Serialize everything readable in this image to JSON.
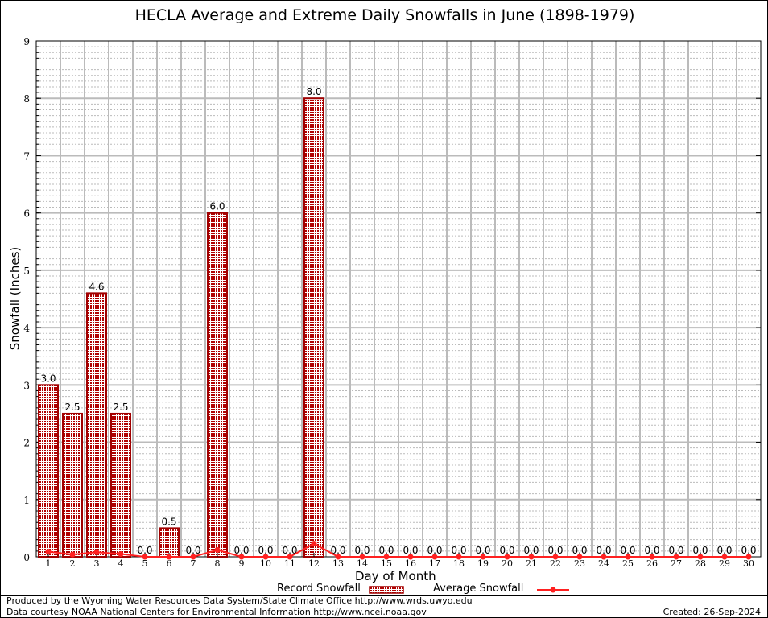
{
  "chart_data": {
    "type": "bar",
    "title": "HECLA Average and Extreme Daily Snowfalls in June (1898-1979)",
    "xlabel": "Day of Month",
    "ylabel": "Snowfall (Inches)",
    "ylim": [
      0,
      9
    ],
    "yticks": [
      "0",
      "1",
      "2",
      "3",
      "4",
      "5",
      "6",
      "7",
      "8",
      "9"
    ],
    "categories": [
      "1",
      "2",
      "3",
      "4",
      "5",
      "6",
      "7",
      "8",
      "9",
      "10",
      "11",
      "12",
      "13",
      "14",
      "15",
      "16",
      "17",
      "18",
      "19",
      "20",
      "21",
      "22",
      "23",
      "24",
      "25",
      "26",
      "27",
      "28",
      "29",
      "30"
    ],
    "series": [
      {
        "name": "Record Snowfall",
        "type": "bar",
        "color": "#cc0000",
        "values": [
          3.0,
          2.5,
          4.6,
          2.5,
          0,
          0.5,
          0,
          6.0,
          0,
          0,
          0,
          8.0,
          0,
          0,
          0,
          0,
          0,
          0,
          0,
          0,
          0,
          0,
          0,
          0,
          0,
          0,
          0,
          0,
          0,
          0
        ],
        "labels": [
          "3.0",
          "2.5",
          "4.6",
          "2.5",
          "0.0",
          "0.5",
          "0.0",
          "6.0",
          "0.0",
          "0.0",
          "0.0",
          "8.0",
          "0.0",
          "0.0",
          "0.0",
          "0.0",
          "0.0",
          "0.0",
          "0.0",
          "0.0",
          "0.0",
          "0.0",
          "0.0",
          "0.0",
          "0.0",
          "0.0",
          "0.0",
          "0.0",
          "0.0",
          "0.0"
        ]
      },
      {
        "name": "Average Snowfall",
        "type": "line",
        "color": "#ff2020",
        "values": [
          0.09,
          0.04,
          0.08,
          0.05,
          0,
          0,
          0,
          0.12,
          0,
          0,
          0,
          0.23,
          0,
          0,
          0,
          0,
          0,
          0,
          0,
          0,
          0,
          0,
          0,
          0,
          0,
          0,
          0,
          0,
          0,
          0
        ]
      }
    ],
    "legend": "bottom",
    "grid": true
  },
  "footer": {
    "line1": "Produced by the Wyoming Water Resources Data System/State Climate Office http://www.wrds.uwyo.edu",
    "line2": "Data courtesy NOAA National Centers for Environmental Information http://www.ncei.noaa.gov",
    "created": "Created:  26-Sep-2024"
  }
}
